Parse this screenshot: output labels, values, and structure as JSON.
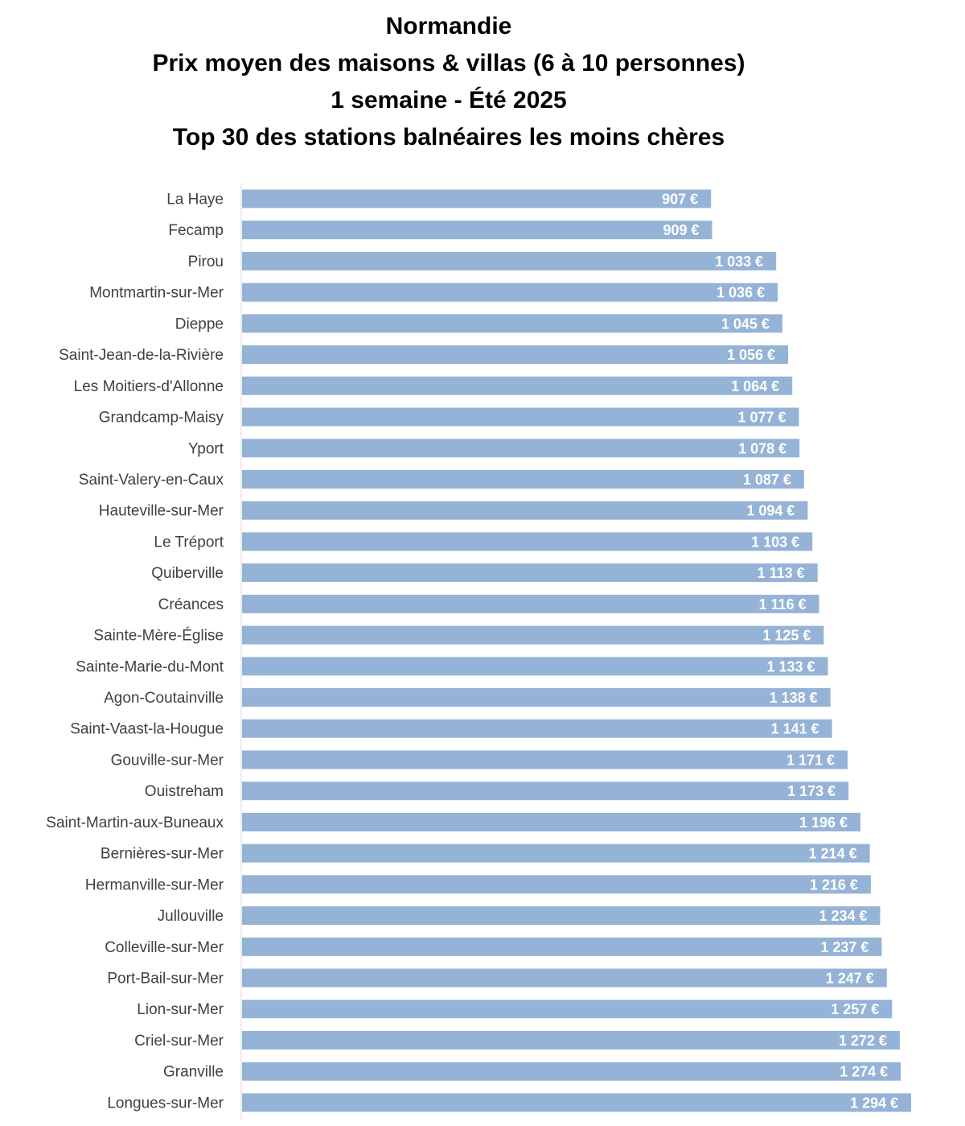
{
  "chart_data": {
    "type": "bar",
    "orientation": "horizontal",
    "title": [
      "Normandie",
      "Prix moyen des maisons & villas (6 à 10 personnes)",
      "1 semaine - Été 2025",
      "Top 30 des stations balnéaires les moins chères"
    ],
    "xlabel": "",
    "ylabel": "",
    "xlim": [
      0,
      1294
    ],
    "grid": false,
    "legend": "none",
    "bar_color": "#95b3d7",
    "value_label_color": "#ffffff",
    "categories": [
      "La Haye",
      "Fecamp",
      "Pirou",
      "Montmartin-sur-Mer",
      "Dieppe",
      "Saint-Jean-de-la-Rivière",
      "Les Moitiers-d'Allonne",
      "Grandcamp-Maisy",
      "Yport",
      "Saint-Valery-en-Caux",
      "Hauteville-sur-Mer",
      "Le Tréport",
      "Quiberville",
      "Créances",
      "Sainte-Mère-Église",
      "Sainte-Marie-du-Mont",
      "Agon-Coutainville",
      "Saint-Vaast-la-Hougue",
      "Gouville-sur-Mer",
      "Ouistreham",
      "Saint-Martin-aux-Buneaux",
      "Bernières-sur-Mer",
      "Hermanville-sur-Mer",
      "Jullouville",
      "Colleville-sur-Mer",
      "Port-Bail-sur-Mer",
      "Lion-sur-Mer",
      "Criel-sur-Mer",
      "Granville",
      "Longues-sur-Mer"
    ],
    "values": [
      907,
      909,
      1033,
      1036,
      1045,
      1056,
      1064,
      1077,
      1078,
      1087,
      1094,
      1103,
      1113,
      1116,
      1125,
      1133,
      1138,
      1141,
      1171,
      1173,
      1196,
      1214,
      1216,
      1234,
      1237,
      1247,
      1257,
      1272,
      1274,
      1294
    ],
    "value_labels": [
      "907 €",
      "909 €",
      "1 033 €",
      "1 036 €",
      "1 045 €",
      "1 056 €",
      "1 064 €",
      "1 077 €",
      "1 078 €",
      "1 087 €",
      "1 094 €",
      "1 103 €",
      "1 113 €",
      "1 116 €",
      "1 125 €",
      "1 133 €",
      "1 138 €",
      "1 141 €",
      "1 171 €",
      "1 173 €",
      "1 196 €",
      "1 214 €",
      "1 216 €",
      "1 234 €",
      "1 237 €",
      "1 247 €",
      "1 257 €",
      "1 272 €",
      "1 274 €",
      "1 294 €"
    ]
  }
}
